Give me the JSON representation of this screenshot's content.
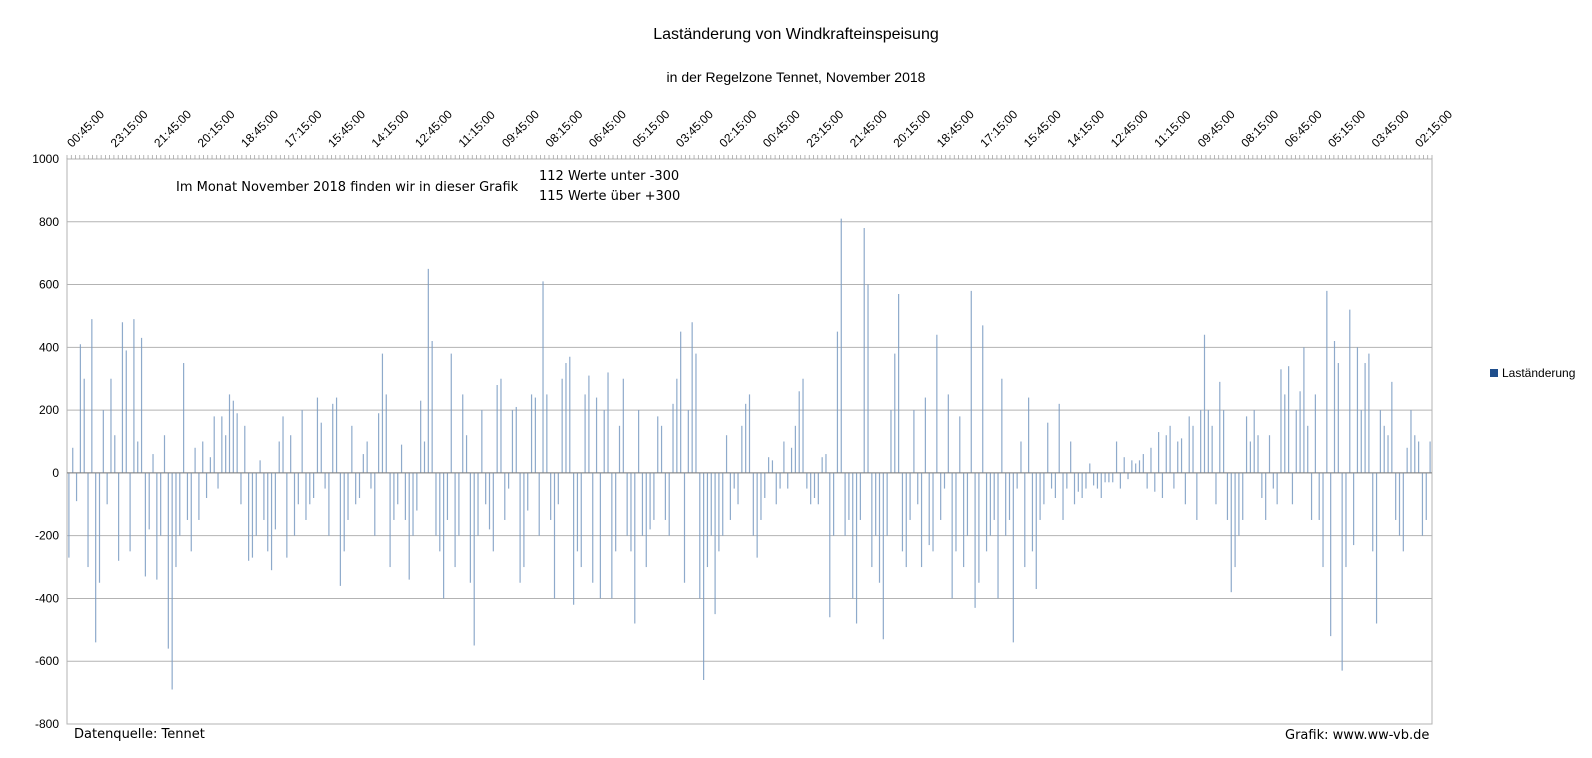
{
  "chart_data": {
    "type": "bar",
    "title": "Laständerung von Windkrafteinspeisung",
    "subtitle": "in der Regelzone Tennet, November 2018",
    "ylim": [
      -800,
      1000
    ],
    "yticks": [
      -800,
      -600,
      -400,
      -200,
      0,
      200,
      400,
      600,
      800,
      1000
    ],
    "x_tick_labels": [
      "00:45:00",
      "23:15:00",
      "21:45:00",
      "20:15:00",
      "18:45:00",
      "17:15:00",
      "15:45:00",
      "14:15:00",
      "12:45:00",
      "11:15:00",
      "09:45:00",
      "08:15:00",
      "06:45:00",
      "05:15:00",
      "03:45:00",
      "02:15:00",
      "00:45:00",
      "23:15:00",
      "21:45:00",
      "20:15:00",
      "18:45:00",
      "17:15:00",
      "15:45:00",
      "14:15:00",
      "12:45:00",
      "11:15:00",
      "09:45:00",
      "08:15:00",
      "06:45:00",
      "05:15:00",
      "03:45:00",
      "02:15:00"
    ],
    "x_axis_position": "top",
    "grid": true,
    "legend": {
      "position": "right",
      "entries": [
        "Laständerung"
      ]
    },
    "series": [
      {
        "name": "Laständerung",
        "color": "#7a9bc2",
        "values": [
          -270,
          80,
          -90,
          410,
          300,
          -300,
          490,
          -540,
          -350,
          200,
          -100,
          300,
          120,
          -280,
          480,
          390,
          -250,
          490,
          100,
          430,
          -330,
          -180,
          60,
          -340,
          -200,
          120,
          -560,
          -690,
          -300,
          -200,
          350,
          -150,
          -250,
          80,
          -150,
          100,
          -80,
          50,
          180,
          -50,
          180,
          120,
          250,
          230,
          190,
          -100,
          150,
          -280,
          -270,
          -200,
          40,
          -150,
          -250,
          -310,
          -180,
          100,
          180,
          -270,
          120,
          -200,
          -100,
          200,
          -150,
          -100,
          -80,
          240,
          160,
          -50,
          -200,
          220,
          240,
          -360,
          -250,
          -150,
          150,
          -100,
          -80,
          60,
          100,
          -50,
          -200,
          190,
          380,
          250,
          -300,
          -150,
          -100,
          90,
          -150,
          -340,
          -200,
          -120,
          230,
          100,
          650,
          420,
          -200,
          -250,
          -400,
          -150,
          380,
          -300,
          -200,
          250,
          120,
          -350,
          -550,
          -200,
          200,
          -100,
          -180,
          -250,
          280,
          300,
          -150,
          -50,
          200,
          210,
          -350,
          -300,
          -120,
          250,
          240,
          -200,
          610,
          250,
          -150,
          -400,
          -100,
          300,
          350,
          370,
          -420,
          -250,
          -300,
          250,
          310,
          -350,
          240,
          -400,
          200,
          320,
          -400,
          -250,
          150,
          300,
          -200,
          -250,
          -480,
          200,
          -200,
          -300,
          -180,
          -150,
          180,
          150,
          -150,
          -200,
          220,
          300,
          450,
          -350,
          200,
          480,
          380,
          -400,
          -660,
          -300,
          -200,
          -450,
          -250,
          -200,
          120,
          -150,
          -50,
          -100,
          150,
          220,
          250,
          -200,
          -270,
          -150,
          -80,
          50,
          40,
          -100,
          -50,
          100,
          -50,
          80,
          150,
          260,
          300,
          -50,
          -100,
          -80,
          -100,
          50,
          60,
          -460,
          -200,
          450,
          810,
          -200,
          -150,
          -400,
          -480,
          -150,
          780,
          600,
          -300,
          -200,
          -350,
          -530,
          -200,
          200,
          380,
          570,
          -250,
          -300,
          -150,
          200,
          -100,
          -300,
          240,
          -230,
          -250,
          440,
          -150,
          -50,
          250,
          -400,
          -250,
          180,
          -300,
          -200,
          580,
          -430,
          -350,
          470,
          -250,
          -200,
          -150,
          -400,
          300,
          -200,
          -150,
          -540,
          -50,
          100,
          -300,
          240,
          -250,
          -370,
          -150,
          -100,
          160,
          -50,
          -80,
          220,
          -150,
          -50,
          100,
          -100,
          -60,
          -80,
          -50,
          30,
          -40,
          -50,
          -80,
          -30,
          -30,
          -30,
          100,
          -50,
          50,
          -20,
          40,
          30,
          40,
          60,
          -50,
          80,
          -60,
          130,
          -80,
          120,
          150,
          -50,
          100,
          110,
          -100,
          180,
          150,
          -150,
          200,
          440,
          200,
          150,
          -100,
          290,
          200,
          -150,
          -380,
          -300,
          -200,
          -150,
          180,
          100,
          200,
          120,
          -80,
          -150,
          120,
          -50,
          -100,
          330,
          250,
          340,
          -100,
          200,
          260,
          400,
          150,
          -150,
          250,
          -150,
          -300,
          580,
          -520,
          420,
          350,
          -630,
          -300,
          520,
          -230,
          400,
          200,
          350,
          380,
          -250,
          -480,
          200,
          150,
          120,
          290,
          -150,
          -200,
          -250,
          80,
          200,
          120,
          100,
          -200,
          -150,
          100
        ]
      }
    ]
  },
  "annotations": {
    "month_text": "Im Monat November 2018 finden wir in dieser Grafik",
    "below_text": "112 Werte unter -300",
    "above_text": "115 Werte über +300"
  },
  "footer": {
    "source": "Datenquelle: Tennet",
    "credit": "Grafik: www.ww-vb.de"
  }
}
